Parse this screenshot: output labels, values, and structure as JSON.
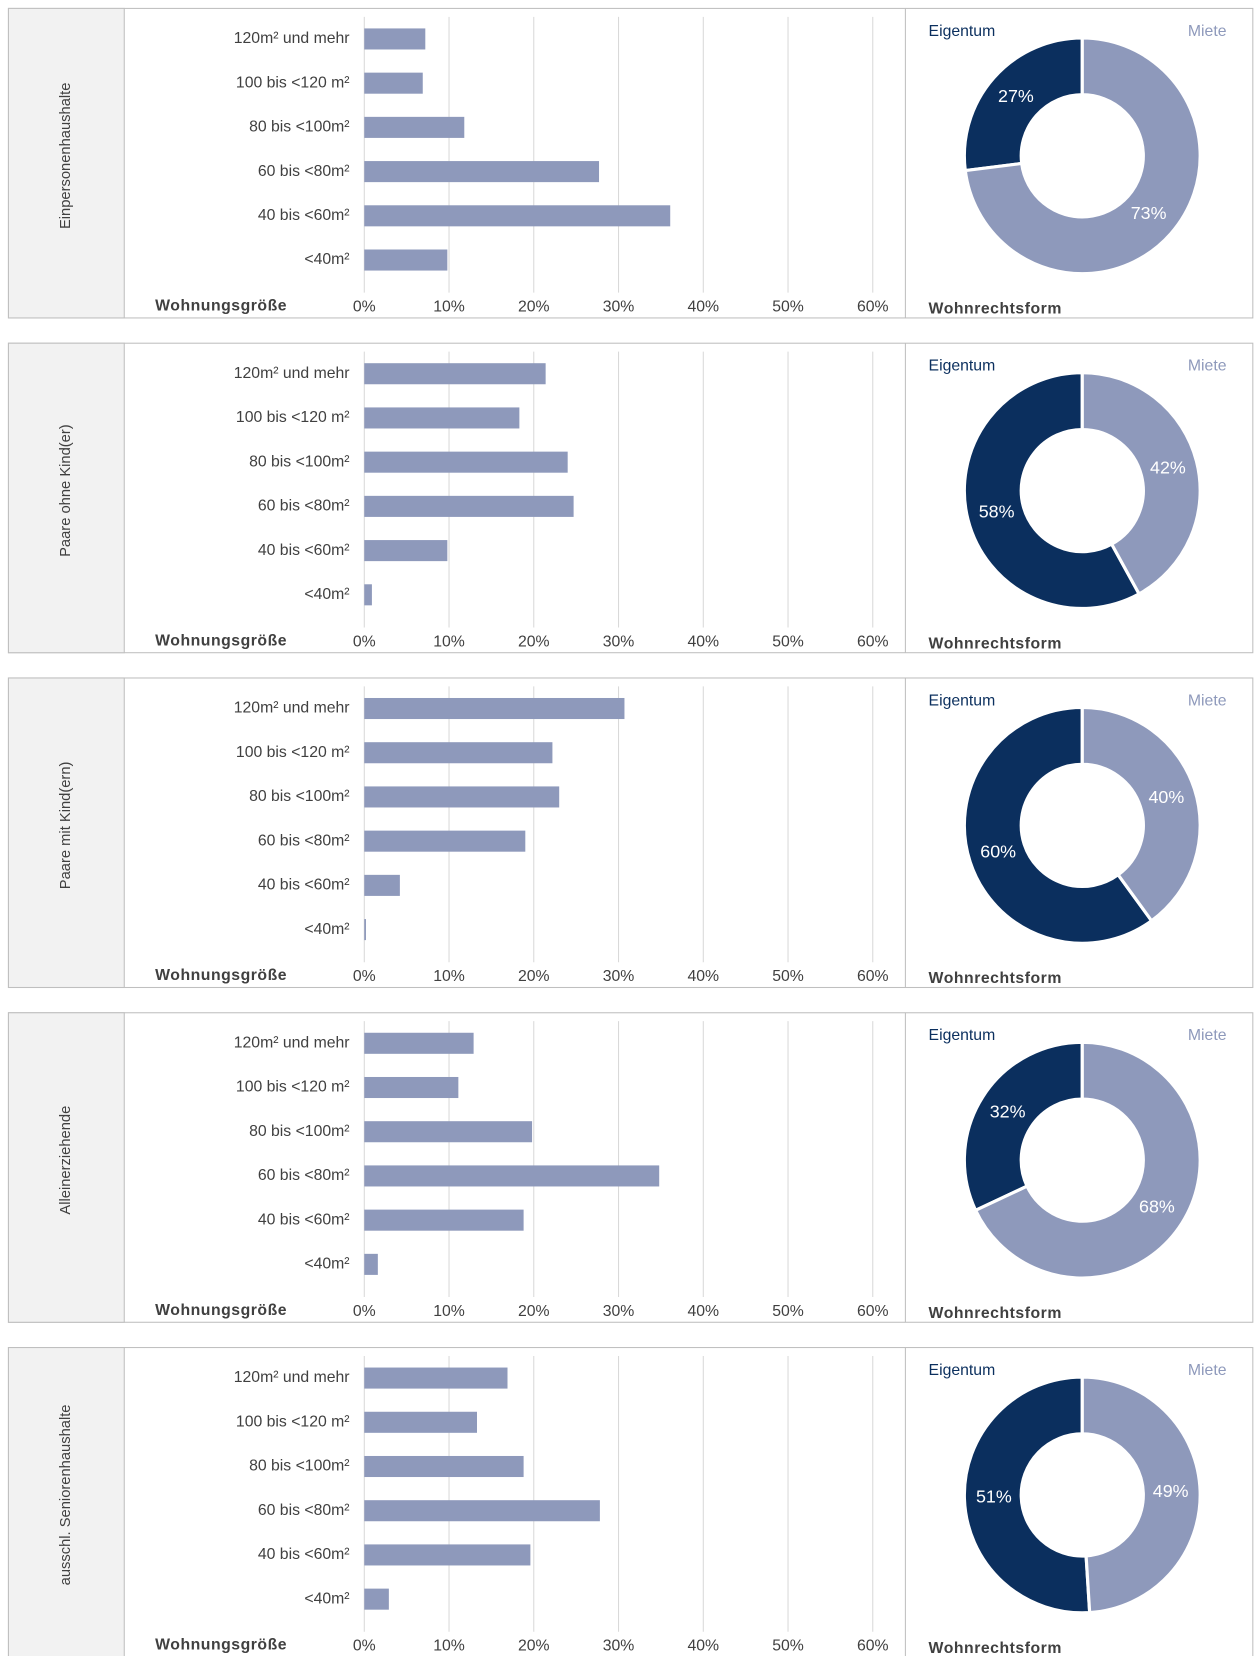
{
  "chart_data": [
    {
      "type": "bar",
      "title": "Einpersonenhaushalte",
      "xlabel": "Wohnungsgröße",
      "categories": [
        "120m² und mehr",
        "100 bis <120 m²",
        "80 bis <100m²",
        "60 bis <80m²",
        "40 bis <60m²",
        "<40m²"
      ],
      "values": [
        7.2,
        6.9,
        11.8,
        27.7,
        36.1,
        9.8
      ],
      "color": "#8e99bb",
      "xlim": [
        0,
        60
      ],
      "xticks": [
        {
          "value": 0,
          "label": "0%"
        },
        {
          "value": 10,
          "label": "10%"
        },
        {
          "value": 20,
          "label": "20%"
        },
        {
          "value": 30,
          "label": "30%"
        },
        {
          "value": 40,
          "label": "40%"
        },
        {
          "value": 50,
          "label": "50%"
        },
        {
          "value": 60,
          "label": "60%"
        }
      ],
      "grid": true
    },
    {
      "type": "pie",
      "title": "Wohnrechtsform",
      "categories": [
        "Eigentum",
        "Miete"
      ],
      "values": [
        27,
        73
      ],
      "value_labels": [
        "27%",
        "73%"
      ],
      "colors": [
        "#0b2f5e",
        "#8e99bb"
      ]
    },
    {
      "type": "bar",
      "title": "Paare ohne Kind(er)",
      "xlabel": "Wohnungsgröße",
      "categories": [
        "120m² und mehr",
        "100 bis <120 m²",
        "80 bis <100m²",
        "60 bis <80m²",
        "40 bis <60m²",
        "<40m²"
      ],
      "values": [
        21.4,
        18.3,
        24.0,
        24.7,
        9.8,
        0.9
      ],
      "color": "#8e99bb",
      "xlim": [
        0,
        60
      ],
      "xticks": [
        {
          "value": 0,
          "label": "0%"
        },
        {
          "value": 10,
          "label": "10%"
        },
        {
          "value": 20,
          "label": "20%"
        },
        {
          "value": 30,
          "label": "30%"
        },
        {
          "value": 40,
          "label": "40%"
        },
        {
          "value": 50,
          "label": "50%"
        },
        {
          "value": 60,
          "label": "60%"
        }
      ],
      "grid": true
    },
    {
      "type": "pie",
      "title": "Wohnrechtsform",
      "categories": [
        "Eigentum",
        "Miete"
      ],
      "values": [
        58,
        42
      ],
      "value_labels": [
        "58%",
        "42%"
      ],
      "colors": [
        "#0b2f5e",
        "#8e99bb"
      ]
    },
    {
      "type": "bar",
      "title": "Paare mit Kind(ern)",
      "xlabel": "Wohnungsgröße",
      "categories": [
        "120m² und mehr",
        "100 bis <120 m²",
        "80 bis <100m²",
        "60 bis <80m²",
        "40 bis <60m²",
        "<40m²"
      ],
      "values": [
        30.7,
        22.2,
        23.0,
        19.0,
        4.2,
        0.2
      ],
      "color": "#8e99bb",
      "xlim": [
        0,
        60
      ],
      "xticks": [
        {
          "value": 0,
          "label": "0%"
        },
        {
          "value": 10,
          "label": "10%"
        },
        {
          "value": 20,
          "label": "20%"
        },
        {
          "value": 30,
          "label": "30%"
        },
        {
          "value": 40,
          "label": "40%"
        },
        {
          "value": 50,
          "label": "50%"
        },
        {
          "value": 60,
          "label": "60%"
        }
      ],
      "grid": true
    },
    {
      "type": "pie",
      "title": "Wohnrechtsform",
      "categories": [
        "Eigentum",
        "Miete"
      ],
      "values": [
        60,
        40
      ],
      "value_labels": [
        "60%",
        "40%"
      ],
      "colors": [
        "#0b2f5e",
        "#8e99bb"
      ]
    },
    {
      "type": "bar",
      "title": "Alleinerziehende",
      "xlabel": "Wohnungsgröße",
      "categories": [
        "120m² und mehr",
        "100 bis <120 m²",
        "80 bis <100m²",
        "60 bis <80m²",
        "40 bis <60m²",
        "<40m²"
      ],
      "values": [
        12.9,
        11.1,
        19.8,
        34.8,
        18.8,
        1.6
      ],
      "color": "#8e99bb",
      "xlim": [
        0,
        60
      ],
      "xticks": [
        {
          "value": 0,
          "label": "0%"
        },
        {
          "value": 10,
          "label": "10%"
        },
        {
          "value": 20,
          "label": "20%"
        },
        {
          "value": 30,
          "label": "30%"
        },
        {
          "value": 40,
          "label": "40%"
        },
        {
          "value": 50,
          "label": "50%"
        },
        {
          "value": 60,
          "label": "60%"
        }
      ],
      "grid": true
    },
    {
      "type": "pie",
      "title": "Wohnrechtsform",
      "categories": [
        "Eigentum",
        "Miete"
      ],
      "values": [
        32,
        68
      ],
      "value_labels": [
        "32%",
        "68%"
      ],
      "colors": [
        "#0b2f5e",
        "#8e99bb"
      ]
    },
    {
      "type": "bar",
      "title": "ausschl. Seniorenhaushalte",
      "xlabel": "Wohnungsgröße",
      "categories": [
        "120m² und mehr",
        "100 bis <120 m²",
        "80 bis <100m²",
        "60 bis <80m²",
        "40 bis <60m²",
        "<40m²"
      ],
      "values": [
        16.9,
        13.3,
        18.8,
        27.8,
        19.6,
        2.9
      ],
      "color": "#8e99bb",
      "xlim": [
        0,
        60
      ],
      "xticks": [
        {
          "value": 0,
          "label": "0%"
        },
        {
          "value": 10,
          "label": "10%"
        },
        {
          "value": 20,
          "label": "20%"
        },
        {
          "value": 30,
          "label": "30%"
        },
        {
          "value": 40,
          "label": "40%"
        },
        {
          "value": 50,
          "label": "50%"
        },
        {
          "value": 60,
          "label": "60%"
        }
      ],
      "grid": true
    },
    {
      "type": "pie",
      "title": "Wohnrechtsform",
      "categories": [
        "Eigentum",
        "Miete"
      ],
      "values": [
        51,
        49
      ],
      "value_labels": [
        "51%",
        "49%"
      ],
      "colors": [
        "#0b2f5e",
        "#8e99bb"
      ]
    }
  ]
}
